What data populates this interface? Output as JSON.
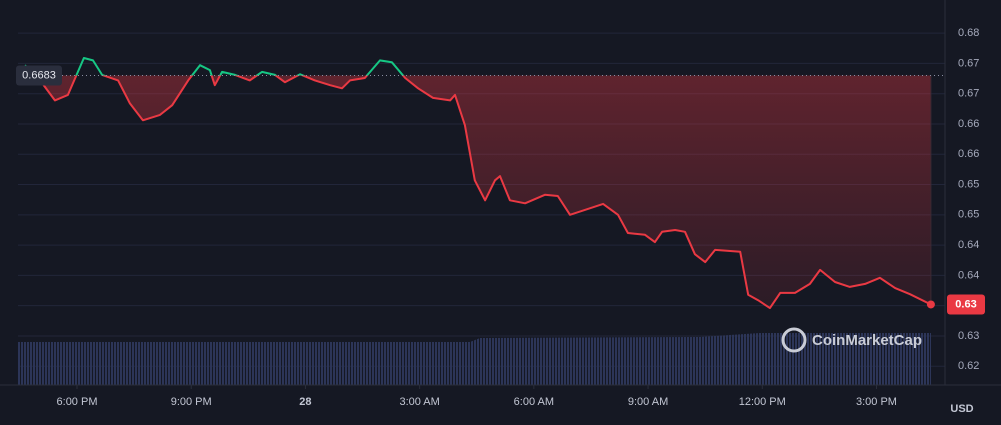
{
  "chart_data": {
    "type": "line",
    "x": [
      16.63,
      17.03,
      17.42,
      17.76,
      18.18,
      18.42,
      18.66,
      19.08,
      19.39,
      19.73,
      20.18,
      20.5,
      20.92,
      21.23,
      21.49,
      21.62,
      21.81,
      22.15,
      22.54,
      22.86,
      23.2,
      23.46,
      23.86,
      24.25,
      24.65,
      24.96,
      25.17,
      25.56,
      25.96,
      26.27,
      26.62,
      26.96,
      27.35,
      27.8,
      27.93,
      28.19,
      28.45,
      28.72,
      28.98,
      29.11,
      29.37,
      29.77,
      30.29,
      30.63,
      30.95,
      31.48,
      31.82,
      32.21,
      32.47,
      32.92,
      33.18,
      33.37,
      33.71,
      33.97,
      34.23,
      34.5,
      34.76,
      35.42,
      35.63,
      35.89,
      36.2,
      36.47,
      36.86,
      37.25,
      37.52,
      37.91,
      38.3,
      38.7,
      39.09,
      39.49,
      39.88,
      40.43
    ],
    "series": [
      {
        "name": "Price",
        "color": "#ea3943",
        "color_above": "#16c784",
        "values": [
          0.67,
          0.6675,
          0.6642,
          0.6651,
          0.6712,
          0.6708,
          0.6684,
          0.6675,
          0.6637,
          0.6609,
          0.6618,
          0.6634,
          0.6675,
          0.67,
          0.6692,
          0.6667,
          0.6689,
          0.6684,
          0.6675,
          0.6689,
          0.6684,
          0.6672,
          0.6685,
          0.6675,
          0.6667,
          0.6662,
          0.6675,
          0.6679,
          0.6708,
          0.6705,
          0.6679,
          0.6662,
          0.6646,
          0.6642,
          0.6651,
          0.6601,
          0.651,
          0.6477,
          0.651,
          0.6517,
          0.6477,
          0.6472,
          0.6486,
          0.6484,
          0.6453,
          0.6464,
          0.6471,
          0.6453,
          0.6423,
          0.642,
          0.6408,
          0.6425,
          0.6428,
          0.6425,
          0.6388,
          0.6375,
          0.6395,
          0.6392,
          0.6321,
          0.6312,
          0.6299,
          0.6324,
          0.6324,
          0.6339,
          0.6362,
          0.6342,
          0.6334,
          0.6339,
          0.6349,
          0.6332,
          0.6322,
          0.6305
        ]
      }
    ],
    "reference": 0.6683,
    "current_price": {
      "value": 0.6305,
      "label": "0.63"
    },
    "xlim": [
      16.45,
      40.8
    ],
    "xticks": [
      {
        "value": 18,
        "label": "6:00 PM"
      },
      {
        "value": 21,
        "label": "9:00 PM"
      },
      {
        "value": 24,
        "label": "28"
      },
      {
        "value": 27,
        "label": "3:00 AM"
      },
      {
        "value": 30,
        "label": "6:00 AM"
      },
      {
        "value": 33,
        "label": "9:00 AM"
      },
      {
        "value": 36,
        "label": "12:00 PM"
      },
      {
        "value": 39,
        "label": "3:00 PM"
      }
    ],
    "ylim": [
      0.6172,
      0.6778
    ],
    "yticks": [
      {
        "value": 0.6203,
        "label": "0.62"
      },
      {
        "value": 0.6253,
        "label": "0.63"
      },
      {
        "value": 0.6303,
        "label": "0.63"
      },
      {
        "value": 0.6353,
        "label": "0.64"
      },
      {
        "value": 0.6403,
        "label": "0.64"
      },
      {
        "value": 0.6453,
        "label": "0.65"
      },
      {
        "value": 0.6503,
        "label": "0.65"
      },
      {
        "value": 0.6553,
        "label": "0.66"
      },
      {
        "value": 0.6603,
        "label": "0.66"
      },
      {
        "value": 0.6653,
        "label": "0.67"
      },
      {
        "value": 0.6703,
        "label": "0.67"
      },
      {
        "value": 0.6753,
        "label": "0.68"
      }
    ],
    "y_unit": "USD",
    "grid": true,
    "watermark": "CoinMarketCap"
  }
}
